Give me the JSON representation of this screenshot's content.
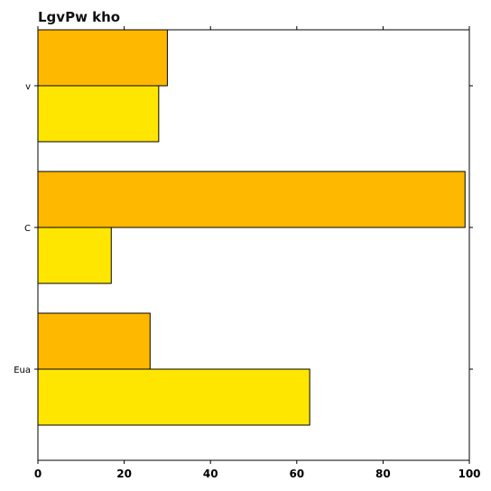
{
  "chart_data": {
    "type": "bar",
    "orientation": "horizontal",
    "title": "LgvPw kho",
    "xlabel": "",
    "ylabel": "",
    "categories": [
      "v",
      "C",
      "Eua"
    ],
    "xlim": [
      0,
      100
    ],
    "x_ticks": [
      0,
      20,
      40,
      60,
      80,
      100
    ],
    "grid": false,
    "legend": "none",
    "series": [
      {
        "color": "#FFB800",
        "values": [
          30,
          99,
          26
        ]
      },
      {
        "color": "#FFE600",
        "values": [
          28,
          17,
          63
        ]
      }
    ]
  }
}
